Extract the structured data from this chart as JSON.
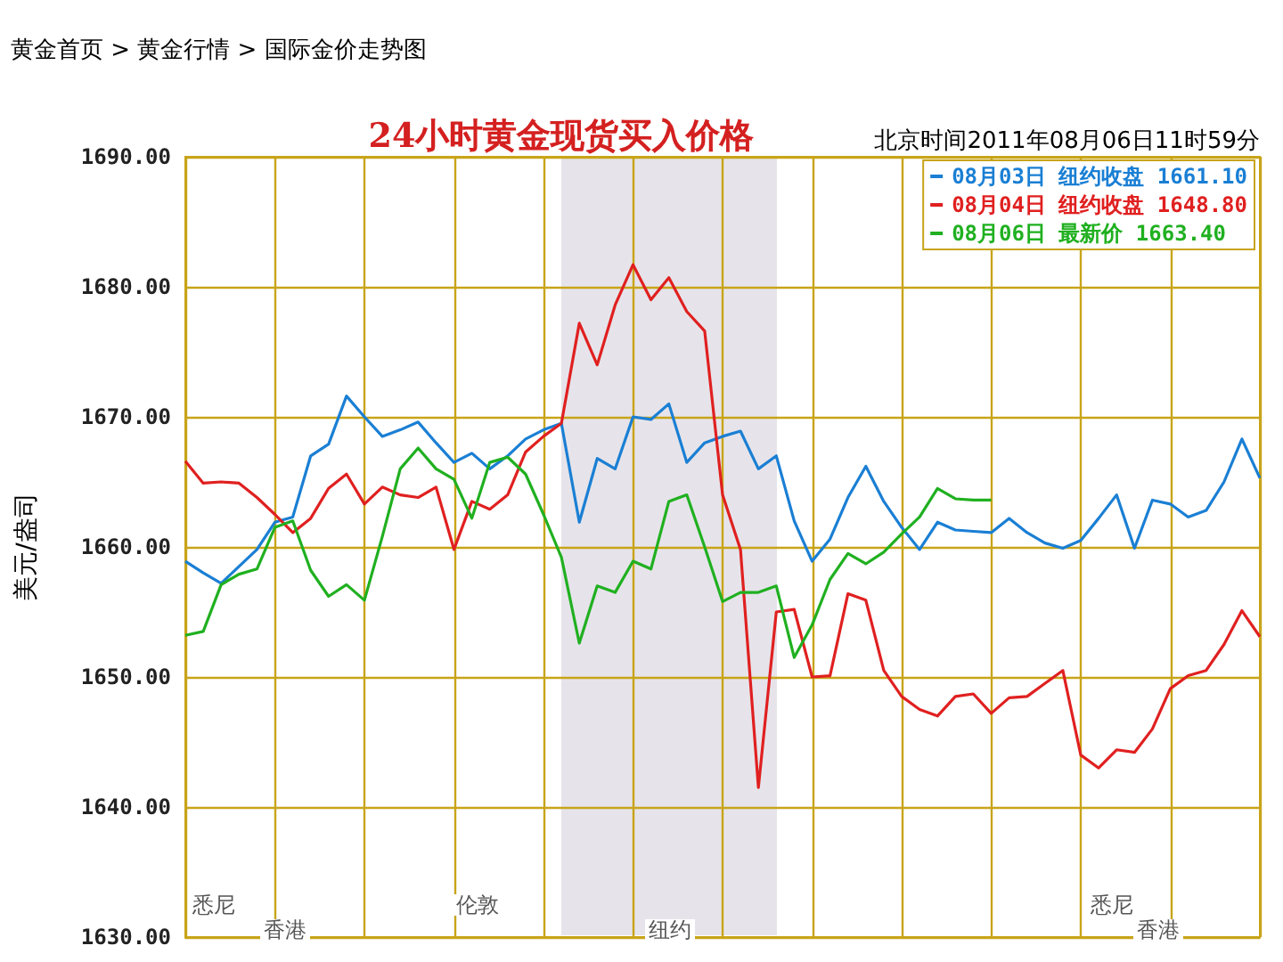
{
  "chart_data": {
    "type": "line",
    "title": "24小时黄金现货买入价格",
    "subtitle": "北京时间2011年08月06日11时59分",
    "ylabel": "美元/盎司",
    "annotations": [
      "黄金首页 > 黄金行情 > 国际金价走势图",
      "悉尼",
      "香港",
      "伦敦",
      "纽约",
      "悉尼",
      "香港"
    ],
    "categories": [
      null,
      null,
      null,
      null,
      null,
      null,
      null,
      null,
      null,
      null,
      null,
      null,
      null,
      null,
      null,
      null,
      null,
      null,
      null,
      null,
      null,
      null,
      null,
      null,
      null,
      null,
      null,
      null,
      null,
      null,
      null,
      null,
      null,
      null,
      null,
      null,
      null,
      null,
      null,
      null,
      null,
      null,
      null,
      null,
      null,
      null,
      null,
      null,
      null,
      null,
      null,
      null,
      null,
      null,
      null,
      null,
      null,
      null,
      null,
      null,
      null
    ],
    "ylim": [
      1630,
      1690
    ],
    "yticks": [
      {
        "value": 1630,
        "label": "1630.00"
      },
      {
        "value": 1640,
        "label": "1640.00"
      },
      {
        "value": 1650,
        "label": "1650.00"
      },
      {
        "value": 1660,
        "label": "1660.00"
      },
      {
        "value": 1670,
        "label": "1670.00"
      },
      {
        "value": 1680,
        "label": "1680.00"
      },
      {
        "value": 1690,
        "label": "1690.00"
      }
    ],
    "tick_labels": "y",
    "grid": true,
    "legend": "top right",
    "marker": "none",
    "line_style": "solid",
    "series": [
      {
        "name": "08月03日 纽约收盘 1661.10",
        "color": "#1a7fd4",
        "values": [
          1658.9,
          1658.0,
          1657.2,
          1658.5,
          1659.8,
          1661.9,
          1662.3,
          1667.0,
          1667.9,
          1671.6,
          1670.0,
          1668.5,
          1669.0,
          1669.6,
          1668.0,
          1666.5,
          1667.2,
          1666.0,
          1667.0,
          1668.3,
          1669.0,
          1669.5,
          1661.9,
          1666.8,
          1666.0,
          1670.0,
          1669.8,
          1671.0,
          1666.5,
          1668.0,
          1668.5,
          1668.9,
          1666.0,
          1667.0,
          1662.0,
          1658.9,
          1660.6,
          1663.8,
          1666.2,
          1663.5,
          1661.5,
          1659.8,
          1661.9,
          1661.3,
          1661.2,
          1661.1,
          1662.2,
          1661.1,
          1660.3,
          1659.9,
          1660.5,
          1662.2,
          1664.0,
          1659.9,
          1663.6,
          1663.3,
          1662.3,
          1662.8,
          1665.0,
          1668.3,
          1665.3
        ]
      },
      {
        "name": "08月04日 纽约收盘 1648.80",
        "color": "#e02020",
        "values": [
          1666.6,
          1664.9,
          1665.0,
          1664.9,
          1663.8,
          1662.5,
          1661.1,
          1662.2,
          1664.5,
          1665.6,
          1663.3,
          1664.6,
          1664.0,
          1663.8,
          1664.6,
          1659.8,
          1663.5,
          1662.9,
          1664.0,
          1667.3,
          1668.5,
          1669.5,
          1677.2,
          1674.0,
          1678.6,
          1681.7,
          1679.0,
          1680.7,
          1678.1,
          1676.6,
          1664.0,
          1659.8,
          1641.5,
          1655.0,
          1655.2,
          1650.0,
          1650.1,
          1656.4,
          1655.9,
          1650.5,
          1648.5,
          1647.5,
          1647.0,
          1648.5,
          1648.7,
          1647.2,
          1648.4,
          1648.5,
          1649.5,
          1650.5,
          1644.0,
          1643.0,
          1644.4,
          1644.2,
          1646.0,
          1649.1,
          1650.1,
          1650.5,
          1652.5,
          1655.1,
          1653.1
        ]
      },
      {
        "name": "08月06日 最新价 1663.40",
        "color": "#20b020",
        "values": [
          1653.2,
          1653.5,
          1657.1,
          1657.9,
          1658.3,
          1661.5,
          1662.0,
          1658.2,
          1656.2,
          1657.1,
          1655.9,
          1660.8,
          1666.0,
          1667.6,
          1666.0,
          1665.2,
          1662.2,
          1666.5,
          1666.9,
          1665.6,
          1662.5,
          1659.2,
          1652.6,
          1657.0,
          1656.5,
          1658.9,
          1658.3,
          1663.5,
          1664.0,
          1660.0,
          1655.8,
          1656.5,
          1656.5,
          1657.0,
          1651.5,
          1654.0,
          1657.5,
          1659.5,
          1658.7,
          1659.6,
          1661.0,
          1662.3,
          1664.5,
          1663.7,
          1663.6,
          1663.6,
          null,
          null,
          null,
          null,
          null,
          null,
          null,
          null,
          null,
          null,
          null,
          null,
          null,
          null,
          null
        ]
      }
    ]
  }
}
